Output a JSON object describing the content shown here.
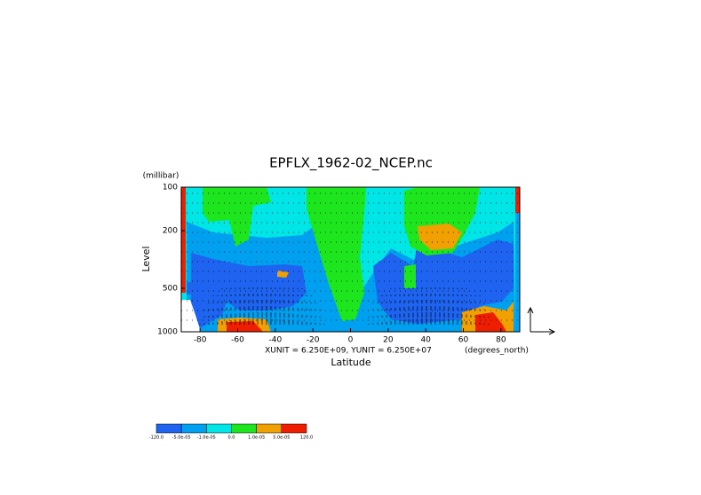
{
  "chart_data": {
    "type": "contour",
    "title": "EPFLX_1962-02_NCEP.nc",
    "y_unit_label": "(millibar)",
    "y_label": "Level",
    "x_label": "Latitude",
    "x_unit_label": "(degrees_north)",
    "vector_scale_label": "XUNIT = 6.250E+09, YUNIT = 6.250E+07",
    "xlim": [
      -90,
      90
    ],
    "xticks": [
      -80,
      -60,
      -40,
      -20,
      0,
      20,
      40,
      60,
      80
    ],
    "ylim": [
      1000,
      100
    ],
    "yticks": [
      100,
      200,
      500,
      1000
    ],
    "ylog": true,
    "colorbar": {
      "levels": [
        {
          "value": -120,
          "label": "-120.0"
        },
        {
          "value": -5e-05,
          "label": "-5.0e-05"
        },
        {
          "value": -1e-05,
          "label": "-1.0e-05"
        },
        {
          "value": 0,
          "label": "0.0"
        },
        {
          "value": 1e-05,
          "label": "1.0e-05"
        },
        {
          "value": 5e-05,
          "label": "5.0e-05"
        },
        {
          "value": 120,
          "label": "120.0"
        }
      ],
      "colors": [
        "#1e64f0",
        "#00a0f0",
        "#00e6e6",
        "#1ee61e",
        "#f0a000",
        "#f01e00"
      ]
    }
  }
}
